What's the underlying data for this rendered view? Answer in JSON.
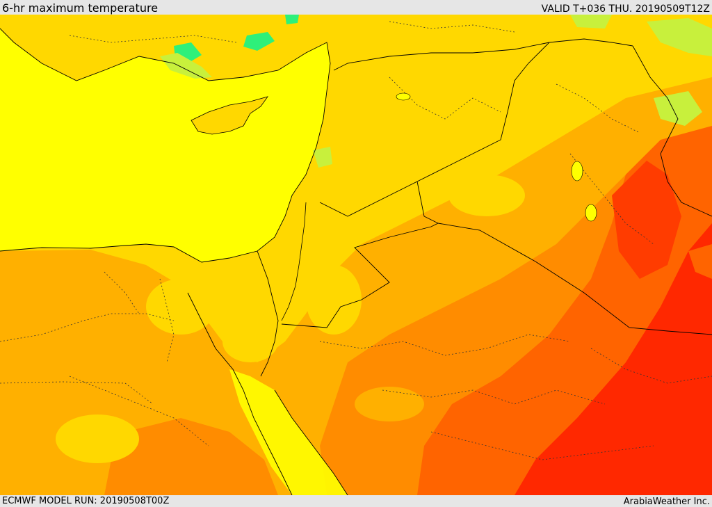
{
  "header": {
    "title": "6-hr maximum temperature",
    "valid_time": "VALID T+036 THU. 20190509T12Z"
  },
  "footer": {
    "model_run": "ECMWF MODEL RUN: 20190508T00Z",
    "credit": "ArabiaWeather Inc."
  },
  "colors": {
    "sea": "#ffff00",
    "warm_yellow": "#ffd800",
    "light_orange": "#ffb000",
    "orange": "#ff8c00",
    "dark_orange": "#ff6400",
    "red": "#ff2800",
    "cool_green": "#2ef07a",
    "light_green": "#c8f03c"
  }
}
